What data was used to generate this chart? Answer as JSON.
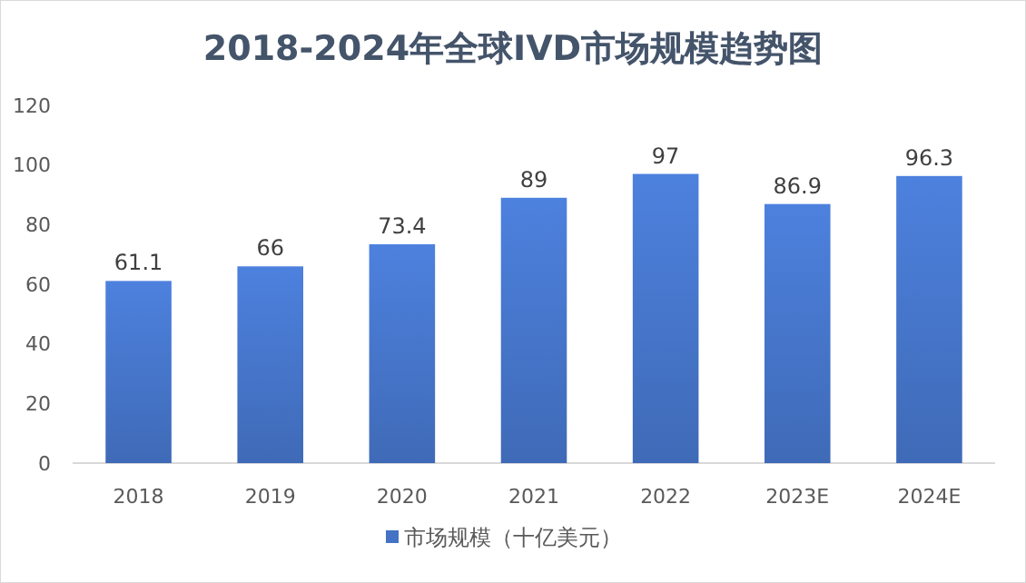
{
  "chart_data": {
    "type": "bar",
    "title": "2018-2024年全球IVD市场规模趋势图",
    "categories": [
      "2018",
      "2019",
      "2020",
      "2021",
      "2022",
      "2023E",
      "2024E"
    ],
    "series": [
      {
        "name": "市场规模（十亿美元）",
        "color": "#4472c4",
        "values": [
          61.1,
          66,
          73.4,
          89,
          97,
          86.9,
          96.3
        ]
      }
    ],
    "ylim": [
      0,
      120
    ],
    "yticks": [
      0,
      20,
      40,
      60,
      80,
      100,
      120
    ],
    "grid": false,
    "data_labels": true,
    "legend": "bottom"
  }
}
